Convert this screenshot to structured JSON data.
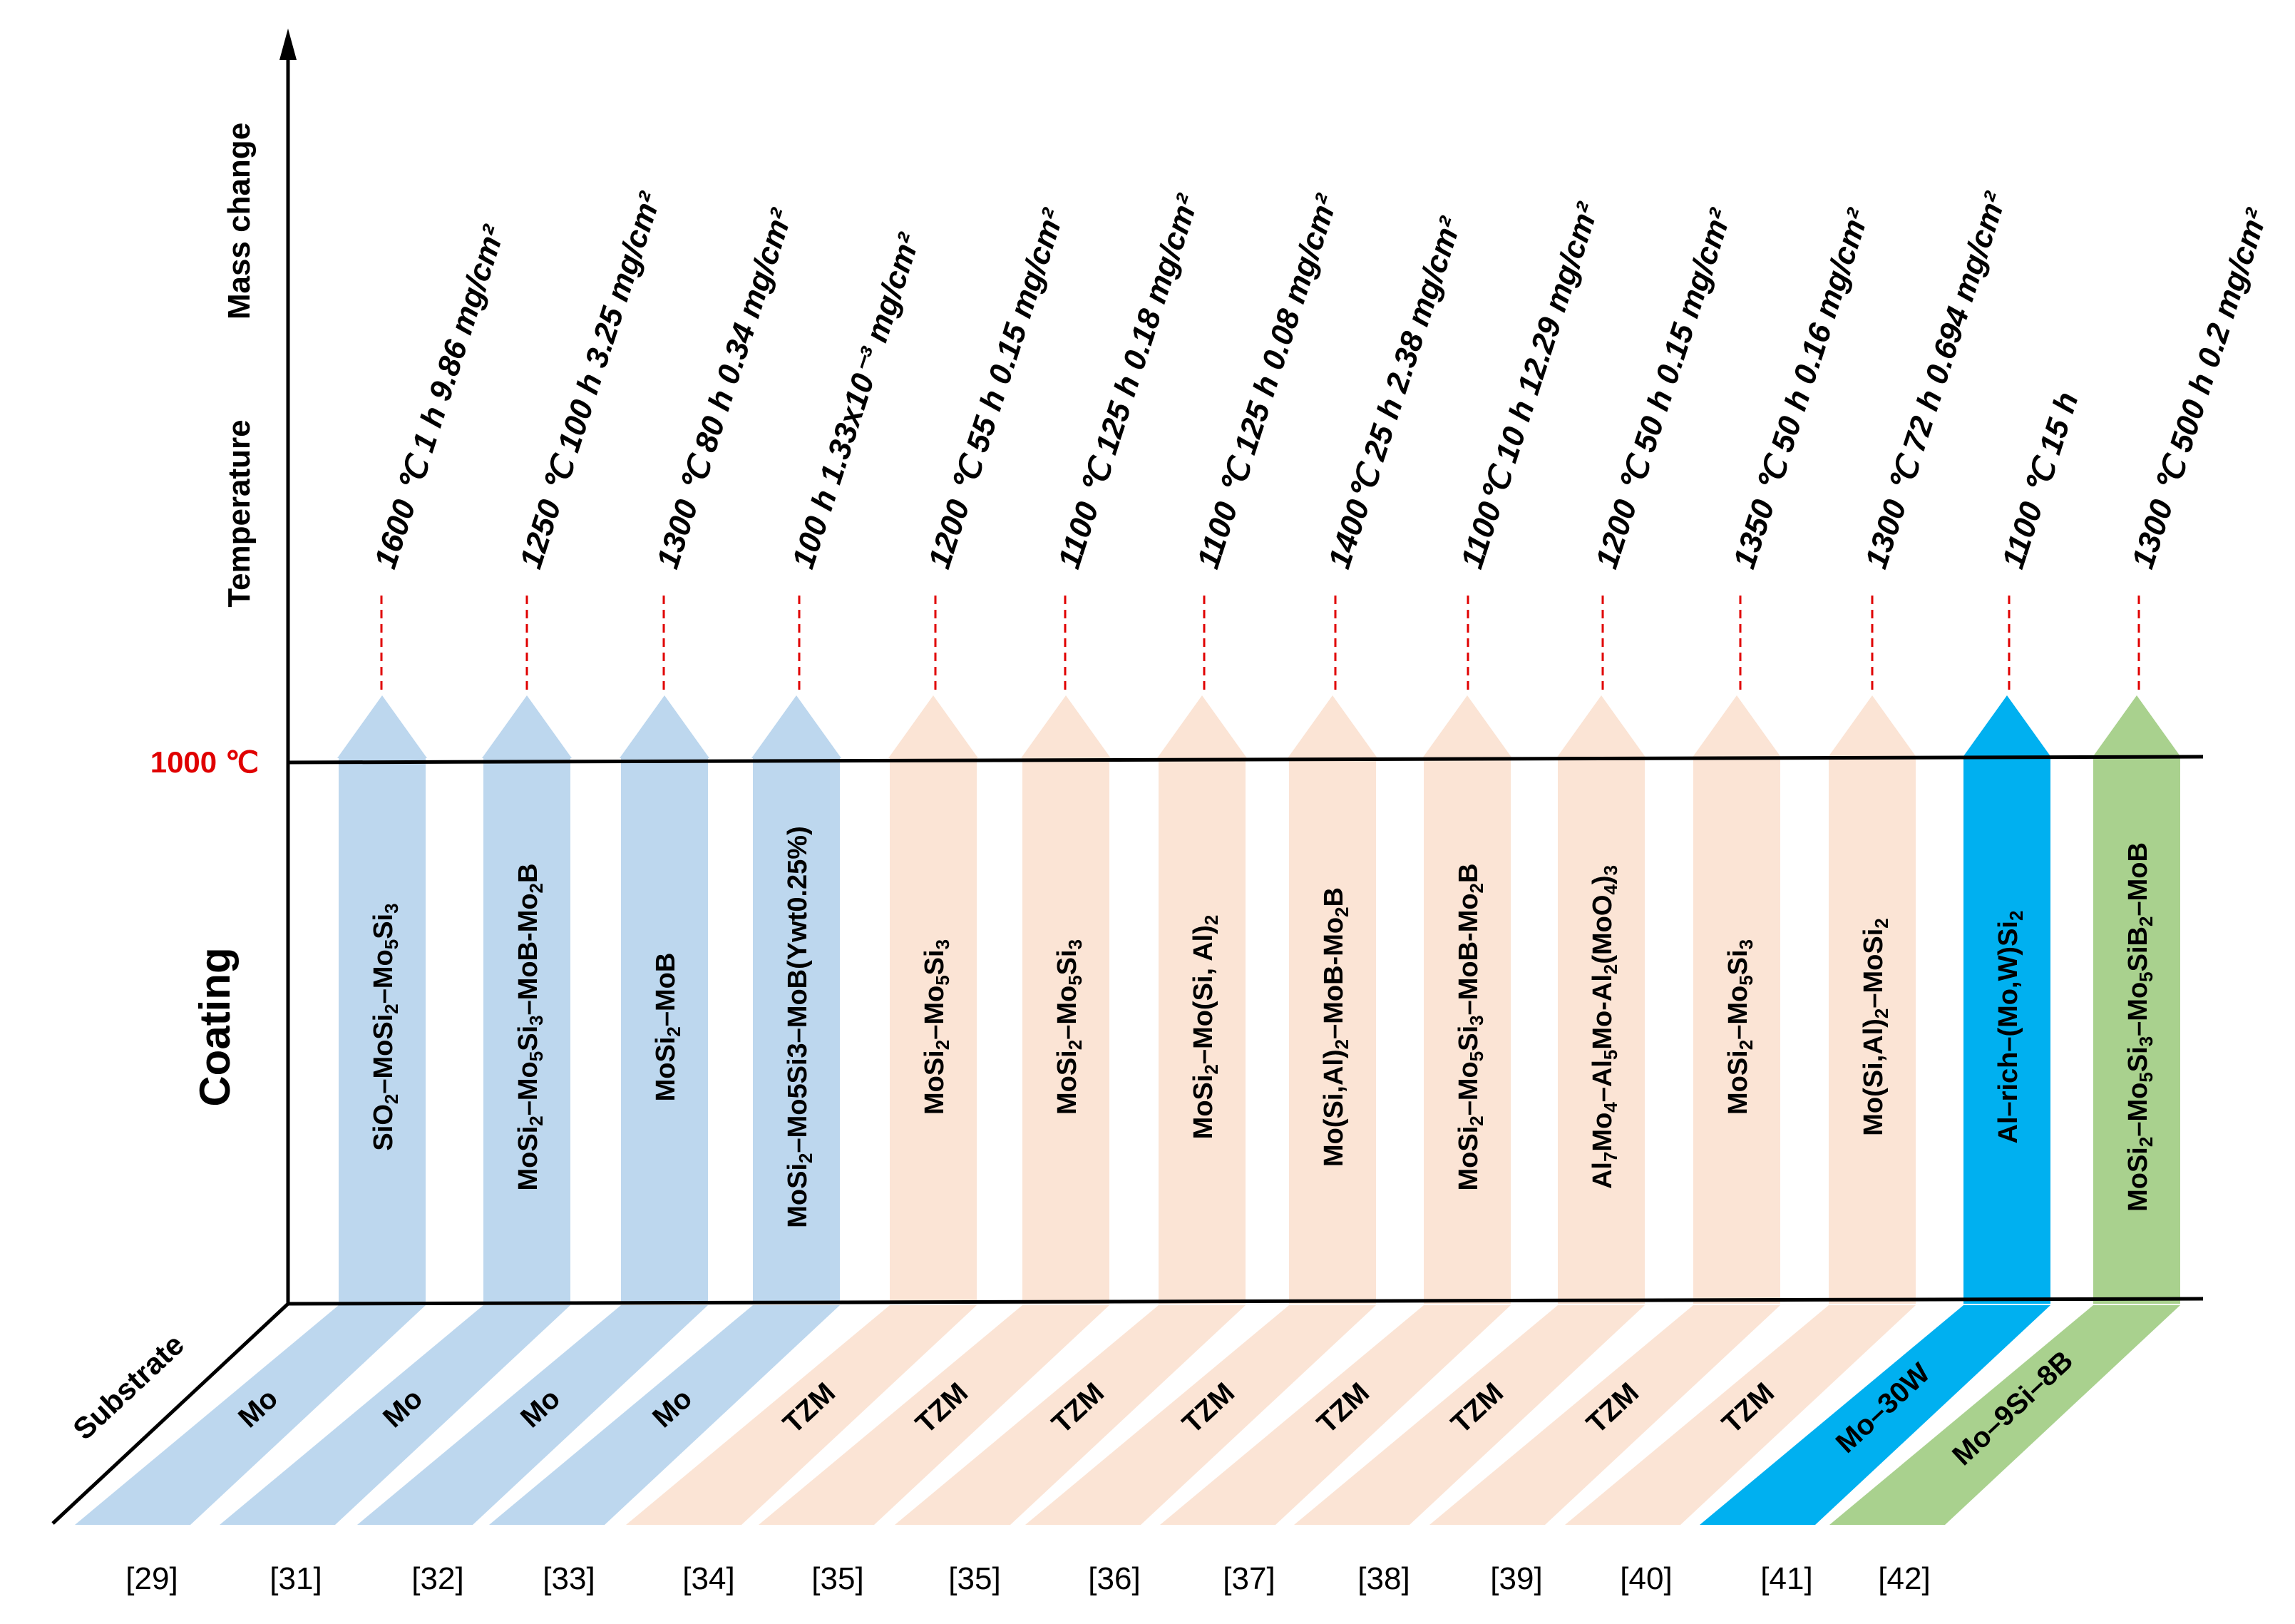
{
  "axis": {
    "mass_change": "Mass change",
    "temperature": "Temperature",
    "coating": "Coating",
    "substrate": "Substrate",
    "threshold": "1000 ℃"
  },
  "colors": {
    "blue_light": "#bdd7ee",
    "peach": "#fbe4d5",
    "cyan": "#00b0f0",
    "green": "#a9d18e",
    "red": "#e00000",
    "black": "#000000"
  },
  "columns": [
    {
      "ref": "[29]",
      "substrate": "Mo",
      "coating_html": "SiO<tspan baseline-shift='sub' font-size='30'>2</tspan>–MoSi<tspan baseline-shift='sub' font-size='30'>2</tspan>–Mo<tspan baseline-shift='sub' font-size='30'>5</tspan>Si<tspan baseline-shift='sub' font-size='30'>3</tspan>",
      "coating": "SiO2–MoSi2–Mo5Si3",
      "condition": "1600 ℃  1  h  9.86 mg/cm²",
      "color": "blue_light"
    },
    {
      "ref": "[31]",
      "substrate": "Mo",
      "coating": "MoSi2–Mo5Si3–MoB-Mo2B",
      "condition": "1250 ℃  100  h  3.25 mg/cm²",
      "color": "blue_light"
    },
    {
      "ref": "[32]",
      "substrate": "Mo",
      "coating": "MoSi2–MoB",
      "condition": "1300 ℃  80  h  0.34 mg/cm²",
      "color": "blue_light"
    },
    {
      "ref": "[33]",
      "substrate": "Mo",
      "coating": "MoSi2–Mo5Si3–MoB(Ywt0.25%)",
      "condition": "100  h  1.33x10⁻³ mg/cm²",
      "color": "blue_light"
    },
    {
      "ref": "[34]",
      "substrate": "TZM",
      "coating": "MoSi2–Mo5Si3",
      "condition": "1200 ℃  55  h  0.15 mg/cm²",
      "color": "peach"
    },
    {
      "ref": "[35]",
      "substrate": "TZM",
      "coating": "MoSi2–Mo5Si3",
      "condition": "1100 ℃  125  h  0.18 mg/cm²",
      "color": "peach"
    },
    {
      "ref": "[35]",
      "substrate": "TZM",
      "coating": "MoSi2–Mo(Si, Al)2",
      "condition": "1100 ℃  125  h  0.08 mg/cm²",
      "color": "peach"
    },
    {
      "ref": "[36]",
      "substrate": "TZM",
      "coating": "Mo(Si,Al)2–MoB-Mo2B",
      "condition": "1400℃ 25 h 2.38 mg/cm²",
      "color": "peach"
    },
    {
      "ref": "[37]",
      "substrate": "TZM",
      "coating": "MoSi2–Mo5Si3–MoB-Mo2B",
      "condition": "1100℃ 10 h 12.29 mg/cm²",
      "color": "peach"
    },
    {
      "ref": "[38]",
      "substrate": "TZM",
      "coating": "Al7Mo4–Al5Mo-Al2(MoO4)3",
      "condition": "1200 ℃  50  h  0.15 mg/cm²",
      "color": "peach"
    },
    {
      "ref": "[39]",
      "substrate": "TZM",
      "coating": "MoSi2–Mo5Si3",
      "condition": "1350 ℃  50  h  0.16 mg/cm²",
      "color": "peach"
    },
    {
      "ref": "[40]",
      "substrate": "TZM",
      "coating": "Mo(Si,Al)2–MoSi2",
      "condition": "1300 ℃  72  h  0.694 mg/cm²",
      "color": "peach"
    },
    {
      "ref": "[41]",
      "substrate": "Mo–30W",
      "coating": "Al–rich–(Mo,W)Si2",
      "condition": "1100 ℃  15  h",
      "color": "cyan"
    },
    {
      "ref": "[42]",
      "substrate": "Mo–9Si–8B",
      "coating": "MoSi2–Mo5Si3–Mo5SiB2–MoB",
      "condition": "1300 ℃  500  h  0.2 mg/cm²",
      "color": "green"
    }
  ]
}
